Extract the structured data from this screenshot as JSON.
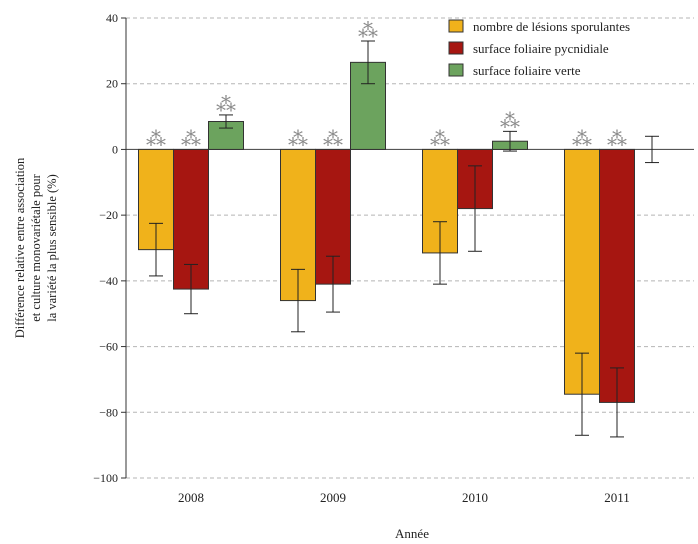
{
  "chart_data": {
    "type": "bar",
    "categories": [
      "2008",
      "2009",
      "2010",
      "2011"
    ],
    "xlabel": "Année",
    "ylabel_lines": [
      "Différence relative entre association",
      "et culture monovariétale pour",
      "la variété la plus sensible (%)"
    ],
    "ylim": [
      -100,
      40
    ],
    "yticks": [
      40,
      20,
      0,
      -20,
      -40,
      -60,
      -80,
      -100
    ],
    "grid": "horizontal dashed",
    "legend_position": "top-right",
    "series": [
      {
        "name": "nombre de lésions sporulantes",
        "color": "#f0b21b",
        "values": [
          -30.5,
          -46,
          -31.5,
          -74.5
        ],
        "errors": [
          8,
          9.5,
          9.5,
          12.5
        ],
        "significant": [
          true,
          true,
          true,
          true
        ]
      },
      {
        "name": "surface foliaire pycnidiale",
        "color": "#a61611",
        "values": [
          -42.5,
          -41,
          -18,
          -77
        ],
        "errors": [
          7.5,
          8.5,
          13,
          10.5
        ],
        "significant": [
          true,
          true,
          false,
          true
        ]
      },
      {
        "name": "surface foliaire verte",
        "color": "#6ca35e",
        "values": [
          8.5,
          26.5,
          2.5,
          0
        ],
        "errors": [
          2,
          6.5,
          3,
          4
        ],
        "significant": [
          true,
          true,
          true,
          false
        ]
      }
    ],
    "significance_marker": "⁂"
  }
}
